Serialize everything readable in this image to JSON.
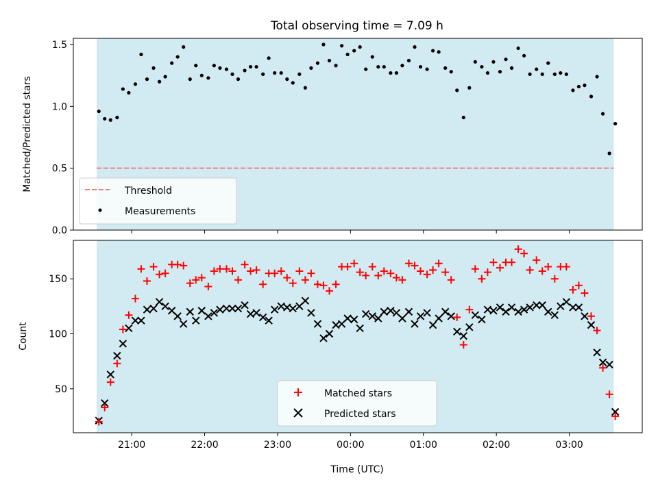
{
  "title": "Total observing time = 7.09 h",
  "colors": {
    "band": "#add8e6",
    "threshold": "#f08080",
    "matched": "#ff0000",
    "predicted": "#000000",
    "measurements": "#000000"
  },
  "chart_data": [
    {
      "type": "scatter",
      "panel": "top",
      "ylabel": "Matched/Predicted stars",
      "xlim": [
        20.2,
        4.0
      ],
      "ylim": [
        0.0,
        1.55
      ],
      "yticks": [
        0.0,
        0.5,
        1.0,
        1.5
      ],
      "ytick_labels": [
        "0.0",
        "0.5",
        "1.0",
        "1.5"
      ],
      "xticks": [
        21,
        22,
        23,
        24,
        25,
        26,
        27
      ],
      "band_x": [
        20.52,
        27.61
      ],
      "threshold": 0.5,
      "legend": {
        "position": "lower-left",
        "entries": [
          "Threshold",
          "Measurements"
        ]
      },
      "series": [
        {
          "name": "Measurements",
          "x": [
            20.55,
            20.63,
            20.71,
            20.8,
            20.88,
            20.96,
            21.05,
            21.13,
            21.21,
            21.3,
            21.38,
            21.46,
            21.55,
            21.63,
            21.71,
            21.8,
            21.88,
            21.96,
            22.05,
            22.13,
            22.21,
            22.3,
            22.38,
            22.46,
            22.55,
            22.63,
            22.71,
            22.8,
            22.88,
            22.96,
            23.05,
            23.13,
            23.21,
            23.3,
            23.38,
            23.46,
            23.55,
            23.63,
            23.71,
            23.8,
            23.88,
            23.96,
            24.05,
            24.13,
            24.21,
            24.3,
            24.38,
            24.46,
            24.55,
            24.63,
            24.71,
            24.8,
            24.88,
            24.96,
            25.05,
            25.13,
            25.21,
            25.3,
            25.38,
            25.46,
            25.55,
            25.63,
            25.71,
            25.8,
            25.88,
            25.96,
            26.05,
            26.13,
            26.21,
            26.3,
            26.38,
            26.46,
            26.55,
            26.63,
            26.71,
            26.8,
            26.88,
            26.96,
            27.05,
            27.13,
            27.21,
            27.3,
            27.38,
            27.46,
            27.55,
            27.63
          ],
          "y": [
            0.96,
            0.9,
            0.89,
            0.91,
            1.14,
            1.11,
            1.18,
            1.42,
            1.22,
            1.31,
            1.2,
            1.24,
            1.35,
            1.4,
            1.48,
            1.22,
            1.33,
            1.25,
            1.23,
            1.33,
            1.31,
            1.3,
            1.26,
            1.22,
            1.29,
            1.32,
            1.32,
            1.26,
            1.39,
            1.27,
            1.27,
            1.22,
            1.19,
            1.26,
            1.15,
            1.31,
            1.35,
            1.5,
            1.37,
            1.33,
            1.49,
            1.42,
            1.45,
            1.48,
            1.3,
            1.4,
            1.32,
            1.32,
            1.27,
            1.27,
            1.33,
            1.37,
            1.48,
            1.32,
            1.3,
            1.45,
            1.44,
            1.31,
            1.28,
            1.13,
            0.91,
            1.15,
            1.36,
            1.32,
            1.27,
            1.36,
            1.28,
            1.38,
            1.31,
            1.47,
            1.41,
            1.26,
            1.3,
            1.26,
            1.35,
            1.26,
            1.27,
            1.26,
            1.13,
            1.16,
            1.17,
            1.08,
            1.24,
            0.94,
            0.62,
            0.86
          ]
        }
      ]
    },
    {
      "type": "scatter",
      "panel": "bottom",
      "xlabel": "Time (UTC)",
      "ylabel": "Count",
      "xlim": [
        20.2,
        4.0
      ],
      "ylim": [
        10,
        185
      ],
      "yticks": [
        50,
        100,
        150
      ],
      "ytick_labels": [
        "50",
        "100",
        "150"
      ],
      "xticks": [
        21,
        22,
        23,
        24,
        25,
        26,
        27
      ],
      "xtick_labels": [
        "21:00",
        "22:00",
        "23:00",
        "00:00",
        "01:00",
        "02:00",
        "03:00"
      ],
      "band_x": [
        20.52,
        27.61
      ],
      "legend": {
        "position": "lower-center",
        "entries": [
          "Matched stars",
          "Predicted stars"
        ]
      },
      "series": [
        {
          "name": "Matched stars",
          "x": [
            20.55,
            20.63,
            20.71,
            20.8,
            20.88,
            20.96,
            21.05,
            21.13,
            21.21,
            21.3,
            21.38,
            21.46,
            21.55,
            21.63,
            21.71,
            21.8,
            21.88,
            21.96,
            22.05,
            22.13,
            22.21,
            22.3,
            22.38,
            22.46,
            22.55,
            22.63,
            22.71,
            22.8,
            22.88,
            22.96,
            23.05,
            23.13,
            23.21,
            23.3,
            23.38,
            23.46,
            23.55,
            23.63,
            23.71,
            23.8,
            23.88,
            23.96,
            24.05,
            24.13,
            24.21,
            24.3,
            24.38,
            24.46,
            24.55,
            24.63,
            24.71,
            24.8,
            24.88,
            24.96,
            25.05,
            25.13,
            25.21,
            25.3,
            25.38,
            25.46,
            25.55,
            25.63,
            25.71,
            25.8,
            25.88,
            25.96,
            26.05,
            26.13,
            26.21,
            26.3,
            26.38,
            26.46,
            26.55,
            26.63,
            26.71,
            26.8,
            26.88,
            26.96,
            27.05,
            27.13,
            27.21,
            27.3,
            27.38,
            27.46,
            27.55,
            27.63
          ],
          "y": [
            20,
            33,
            56,
            73,
            104,
            117,
            132,
            159,
            148,
            161,
            154,
            155,
            163,
            163,
            162,
            146,
            149,
            151,
            143,
            157,
            159,
            159,
            157,
            149,
            163,
            157,
            158,
            145,
            155,
            155,
            157,
            151,
            146,
            157,
            149,
            155,
            145,
            144,
            139,
            145,
            161,
            161,
            164,
            156,
            153,
            161,
            153,
            157,
            155,
            151,
            149,
            164,
            162,
            157,
            154,
            158,
            164,
            156,
            149,
            115,
            90,
            122,
            159,
            150,
            156,
            165,
            160,
            165,
            165,
            177,
            173,
            158,
            167,
            157,
            161,
            150,
            161,
            161,
            140,
            144,
            137,
            116,
            103,
            69,
            45,
            25
          ]
        },
        {
          "name": "Predicted stars",
          "x": [
            20.55,
            20.63,
            20.71,
            20.8,
            20.88,
            20.96,
            21.05,
            21.13,
            21.21,
            21.3,
            21.38,
            21.46,
            21.55,
            21.63,
            21.71,
            21.8,
            21.88,
            21.96,
            22.05,
            22.13,
            22.21,
            22.3,
            22.38,
            22.46,
            22.55,
            22.63,
            22.71,
            22.8,
            22.88,
            22.96,
            23.05,
            23.13,
            23.21,
            23.3,
            23.38,
            23.46,
            23.55,
            23.63,
            23.71,
            23.8,
            23.88,
            23.96,
            24.05,
            24.13,
            24.21,
            24.3,
            24.38,
            24.46,
            24.55,
            24.63,
            24.71,
            24.8,
            24.88,
            24.96,
            25.05,
            25.13,
            25.21,
            25.3,
            25.38,
            25.46,
            25.55,
            25.63,
            25.71,
            25.8,
            25.88,
            25.96,
            26.05,
            26.13,
            26.21,
            26.3,
            26.38,
            26.46,
            26.55,
            26.63,
            26.71,
            26.8,
            26.88,
            26.96,
            27.05,
            27.13,
            27.21,
            27.3,
            27.38,
            27.46,
            27.55,
            27.63
          ],
          "y": [
            21,
            37,
            63,
            80,
            91,
            105,
            112,
            112,
            122,
            123,
            129,
            125,
            121,
            116,
            109,
            120,
            112,
            121,
            116,
            119,
            122,
            123,
            123,
            123,
            126,
            118,
            119,
            115,
            112,
            122,
            125,
            124,
            123,
            125,
            130,
            119,
            109,
            96,
            100,
            108,
            109,
            114,
            113,
            105,
            118,
            116,
            114,
            120,
            121,
            119,
            114,
            120,
            109,
            116,
            119,
            108,
            114,
            120,
            116,
            102,
            98,
            106,
            117,
            113,
            122,
            121,
            124,
            120,
            124,
            120,
            122,
            124,
            126,
            126,
            120,
            117,
            125,
            129,
            124,
            124,
            116,
            108,
            83,
            74,
            72,
            29
          ]
        }
      ]
    }
  ]
}
